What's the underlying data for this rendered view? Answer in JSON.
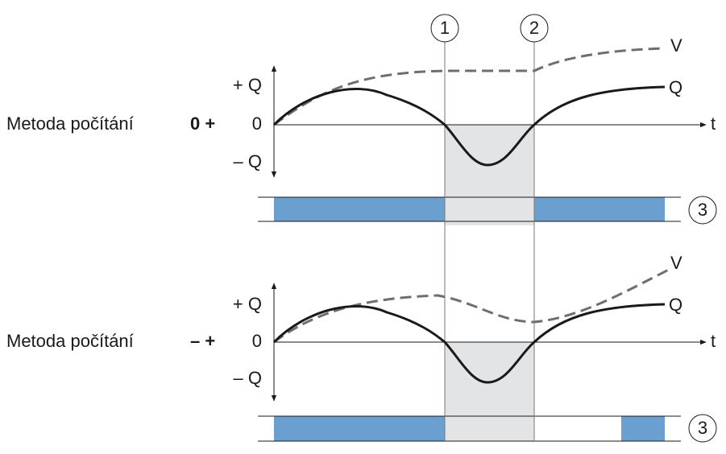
{
  "markers": [
    {
      "label": "1"
    },
    {
      "label": "2"
    }
  ],
  "panels": [
    {
      "method": "Metoda počítání",
      "symbol": "0 +",
      "plus_q": "+ Q",
      "zero": "0",
      "minus_q": "– Q",
      "axis": "t",
      "v_label": "V",
      "q_label": "Q",
      "output": "3"
    },
    {
      "method": "Metoda počítání",
      "symbol": "– +",
      "plus_q": "+ Q",
      "zero": "0",
      "minus_q": "– Q",
      "axis": "t",
      "v_label": "V",
      "q_label": "Q",
      "output": "3"
    }
  ]
}
